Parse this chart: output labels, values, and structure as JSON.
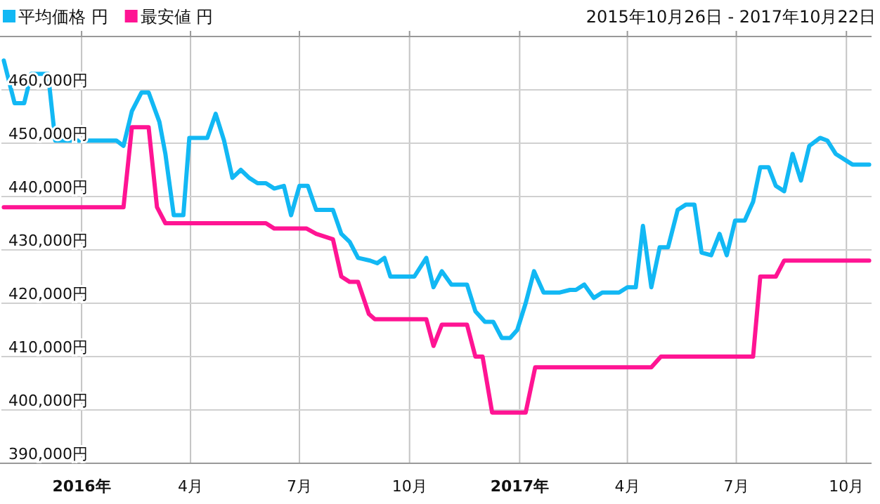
{
  "chart_data": {
    "type": "line",
    "subtitle": "2015年10月26日 - 2017年10月22日",
    "xlim": [
      "2015-10-26",
      "2017-10-22"
    ],
    "xticks": [
      {
        "value": "2016-01-01",
        "label": "2016年"
      },
      {
        "value": "2016-04-01",
        "label": "4月"
      },
      {
        "value": "2016-07-01",
        "label": "7月"
      },
      {
        "value": "2016-10-01",
        "label": "10月"
      },
      {
        "value": "2017-01-01",
        "label": "2017年"
      },
      {
        "value": "2017-04-01",
        "label": "4月"
      },
      {
        "value": "2017-07-01",
        "label": "7月"
      },
      {
        "value": "2017-10-01",
        "label": "10月"
      }
    ],
    "ylim": [
      390000,
      470000
    ],
    "yticks": [
      {
        "value": 390000,
        "label": "390,000円"
      },
      {
        "value": 400000,
        "label": "400,000円"
      },
      {
        "value": 410000,
        "label": "410,000円"
      },
      {
        "value": 420000,
        "label": "420,000円"
      },
      {
        "value": 430000,
        "label": "430,000円"
      },
      {
        "value": 440000,
        "label": "440,000円"
      },
      {
        "value": 450000,
        "label": "450,000円"
      },
      {
        "value": 460000,
        "label": "460,000円"
      }
    ],
    "grid": true,
    "legend": "top left",
    "marker": "none",
    "line_style": "solid",
    "series": [
      {
        "name": "平均価格 円",
        "color": "#12b8f4",
        "x": [
          "2015-10-28",
          "2015-11-06",
          "2015-11-14",
          "2015-11-20",
          "2015-12-04",
          "2015-12-10",
          "2016-01-30",
          "2016-02-05",
          "2016-02-12",
          "2016-02-20",
          "2016-02-26",
          "2016-03-06",
          "2016-03-11",
          "2016-03-18",
          "2016-03-26",
          "2016-03-31",
          "2016-04-15",
          "2016-04-22",
          "2016-04-29",
          "2016-05-06",
          "2016-05-13",
          "2016-05-20",
          "2016-05-27",
          "2016-06-03",
          "2016-06-10",
          "2016-06-18",
          "2016-06-24",
          "2016-07-01",
          "2016-07-08",
          "2016-07-15",
          "2016-07-29",
          "2016-08-05",
          "2016-08-12",
          "2016-08-19",
          "2016-08-29",
          "2016-09-04",
          "2016-09-10",
          "2016-09-15",
          "2016-10-05",
          "2016-10-15",
          "2016-10-21",
          "2016-10-28",
          "2016-11-05",
          "2016-11-18",
          "2016-11-25",
          "2016-12-03",
          "2016-12-10",
          "2016-12-17",
          "2016-12-24",
          "2016-12-30",
          "2017-01-06",
          "2017-01-13",
          "2017-01-21",
          "2017-02-03",
          "2017-02-12",
          "2017-02-17",
          "2017-02-24",
          "2017-03-04",
          "2017-03-11",
          "2017-03-25",
          "2017-04-01",
          "2017-04-08",
          "2017-04-14",
          "2017-04-21",
          "2017-04-28",
          "2017-05-05",
          "2017-05-13",
          "2017-05-20",
          "2017-05-27",
          "2017-06-02",
          "2017-06-10",
          "2017-06-17",
          "2017-06-23",
          "2017-06-30",
          "2017-07-08",
          "2017-07-15",
          "2017-07-21",
          "2017-07-28",
          "2017-08-03",
          "2017-08-10",
          "2017-08-17",
          "2017-08-24",
          "2017-08-31",
          "2017-09-09",
          "2017-09-15",
          "2017-09-22",
          "2017-10-06",
          "2017-10-20"
        ],
        "values": [
          465500,
          457500,
          457500,
          463000,
          463000,
          450500,
          450500,
          449500,
          456000,
          459500,
          459500,
          454000,
          448000,
          436500,
          436500,
          451000,
          451000,
          455500,
          450500,
          443500,
          445000,
          443500,
          442500,
          442500,
          441500,
          442000,
          436500,
          442000,
          442000,
          437500,
          437500,
          433000,
          431500,
          428500,
          428000,
          427500,
          428500,
          425000,
          425000,
          428500,
          423000,
          426000,
          423500,
          423500,
          418500,
          416500,
          416500,
          413500,
          413500,
          415000,
          420000,
          426000,
          422000,
          422000,
          422500,
          422500,
          423500,
          421000,
          422000,
          422000,
          423000,
          423000,
          434500,
          423000,
          430500,
          430500,
          437500,
          438500,
          438500,
          429500,
          429000,
          433000,
          429000,
          435500,
          435500,
          439000,
          445500,
          445500,
          442000,
          441000,
          448000,
          443000,
          449500,
          451000,
          450500,
          448000,
          446000,
          446000
        ]
      },
      {
        "name": "最安値 円",
        "color": "#ff1493",
        "x": [
          "2015-10-28",
          "2016-02-05",
          "2016-02-12",
          "2016-02-26",
          "2016-03-04",
          "2016-03-11",
          "2016-06-03",
          "2016-06-10",
          "2016-07-07",
          "2016-07-15",
          "2016-07-29",
          "2016-08-05",
          "2016-08-12",
          "2016-08-19",
          "2016-08-28",
          "2016-09-02",
          "2016-10-15",
          "2016-10-21",
          "2016-10-28",
          "2016-11-18",
          "2016-11-25",
          "2016-12-01",
          "2016-12-09",
          "2017-01-06",
          "2017-01-14",
          "2017-04-21",
          "2017-04-29",
          "2017-07-15",
          "2017-07-21",
          "2017-08-03",
          "2017-08-10",
          "2017-10-20"
        ],
        "values": [
          438000,
          438000,
          453000,
          453000,
          438000,
          435000,
          435000,
          434000,
          434000,
          433000,
          432000,
          425000,
          424000,
          424000,
          418000,
          417000,
          417000,
          412000,
          416000,
          416000,
          410000,
          410000,
          399500,
          399500,
          408000,
          408000,
          410000,
          410000,
          425000,
          425000,
          428000,
          428000
        ]
      }
    ]
  }
}
